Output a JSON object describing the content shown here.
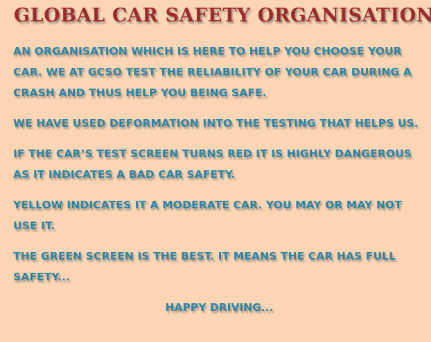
{
  "header": {
    "title": "GLOBAL CAR SAFETY ORGANISATION"
  },
  "content": {
    "paragraphs": [
      "AN ORGANISATION WHICH IS HERE TO HELP YOU CHOOSE YOUR CAR. WE AT GCSO TEST THE RELIABILITY OF YOUR CAR DURING A CRASH AND THUS HELP YOU BEING SAFE.",
      "WE HAVE USED DEFORMATION INTO THE TESTING THAT HELPS US.",
      "IF THE CAR’S TEST SCREEN TURNS RED IT IS HIGHLY DANGEROUS AS IT INDICATES A BAD CAR SAFETY.",
      "YELLOW INDICATES IT A MODERATE CAR. YOU MAY OR MAY NOT USE IT.",
      "THE GREEN SCREEN IS THE BEST. IT MEANS THE CAR HAS FULL SAFETY..."
    ],
    "closing": "HAPPY DRIVING..."
  },
  "colors": {
    "background": "#fbd5b4",
    "title": "#9b2b2c",
    "text": "#2b86a6"
  }
}
